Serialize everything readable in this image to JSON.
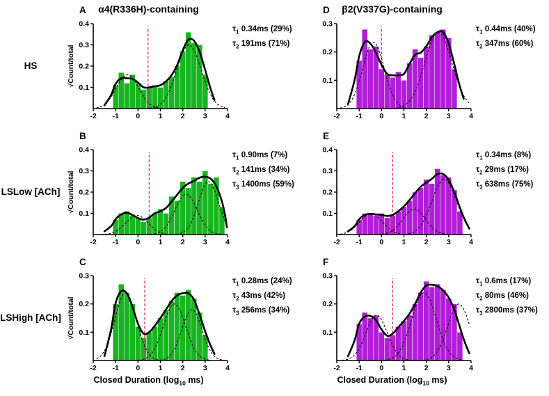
{
  "columns": [
    {
      "title": "α4(R336H)-containing"
    },
    {
      "title": "β2(V337G)-containing"
    }
  ],
  "row_labels": [
    {
      "lines": [
        "HS"
      ]
    },
    {
      "lines": [
        "LS",
        "Low [ACh]"
      ]
    },
    {
      "lines": [
        "LS",
        "High [ACh]"
      ]
    }
  ],
  "x_axis_label": {
    "pre": "Closed Duration (log",
    "sub": "10",
    "post": " ms)"
  },
  "y_axis_label": "√Count/total",
  "colors": {
    "green": "#18b520",
    "purple": "#b01ed8",
    "marker_line": "#e6246d",
    "fit_curve": "#000000"
  },
  "chart_data": {
    "type": "bar",
    "subtype": "closed-duration dwell-time histograms (sqrt counts) with multi-exponential fit curves",
    "x_axis": {
      "range": [
        -2,
        4
      ],
      "ticks": [
        -2,
        -1,
        0,
        1,
        2,
        3,
        4
      ]
    },
    "panels": [
      {
        "letter": "A",
        "row": "HS",
        "column": "α4(R336H)-containing",
        "color": "green",
        "ylabel": "√Count/total",
        "ylim": [
          0,
          0.4
        ],
        "yticks": [
          0.1,
          0.2,
          0.3,
          0.4
        ],
        "xlim": [
          -2,
          4
        ],
        "xticks": [
          -2,
          -1,
          0,
          1,
          2,
          3,
          4
        ],
        "marker_x": 0.45,
        "bins": {
          "start": -1.0,
          "width": 0.25,
          "values": [
            0.11,
            0.17,
            0.12,
            0.16,
            0.12,
            0.09,
            0.1,
            0.11,
            0.1,
            0.13,
            0.15,
            0.2,
            0.27,
            0.36,
            0.31,
            0.3,
            0.16
          ]
        },
        "components": [
          {
            "tau_label": "1",
            "tau_ms": 0.34,
            "percent": 29,
            "text": "0.34ms (29%)",
            "center": -0.47,
            "amp": 0.16,
            "sigma": 0.5
          },
          {
            "tau_label": "2",
            "tau_ms": 191,
            "percent": 71,
            "text": "191ms (71%)",
            "center": 2.28,
            "amp": 0.3,
            "sigma": 0.55
          }
        ]
      },
      {
        "letter": "B",
        "row": "LS Low [ACh]",
        "column": "α4(R336H)-containing",
        "color": "green",
        "ylabel": "√Count/total",
        "ylim": [
          0,
          0.4
        ],
        "yticks": [
          0.1,
          0.2,
          0.3,
          0.4
        ],
        "xlim": [
          -2,
          4
        ],
        "xticks": [
          -2,
          -1,
          0,
          1,
          2,
          3,
          4
        ],
        "marker_x": 0.5,
        "bins": {
          "start": -1.0,
          "width": 0.25,
          "values": [
            0.07,
            0.1,
            0.11,
            0.09,
            0.08,
            0.06,
            0.08,
            0.1,
            0.12,
            0.1,
            0.18,
            0.16,
            0.25,
            0.22,
            0.27,
            0.25,
            0.3,
            0.24,
            0.27,
            0.13
          ]
        },
        "components": [
          {
            "tau_label": "1",
            "tau_ms": 0.9,
            "percent": 7,
            "text": "0.90ms (7%)",
            "center": -0.05,
            "amp": 0.09,
            "sigma": 0.5
          },
          {
            "tau_label": "2",
            "tau_ms": 141,
            "percent": 34,
            "text": "141ms (34%)",
            "center": 2.15,
            "amp": 0.19,
            "sigma": 0.5
          },
          {
            "tau_label": "3",
            "tau_ms": 1400,
            "percent": 59,
            "text": "1400ms (59%)",
            "center": 3.15,
            "amp": 0.25,
            "sigma": 0.45
          }
        ]
      },
      {
        "letter": "C",
        "row": "LS High [ACh]",
        "column": "α4(R336H)-containing",
        "color": "green",
        "ylabel": "√Count/total",
        "ylim": [
          0,
          0.3
        ],
        "yticks": [
          0.1,
          0.2,
          0.3
        ],
        "xlim": [
          -2,
          4
        ],
        "xticks": [
          -2,
          -1,
          0,
          1,
          2,
          3,
          4
        ],
        "marker_x": 0.3,
        "bins": {
          "start": -1.0,
          "width": 0.25,
          "values": [
            0.2,
            0.27,
            0.24,
            0.2,
            0.12,
            0.08,
            0.1,
            0.12,
            0.15,
            0.18,
            0.21,
            0.24,
            0.23,
            0.25,
            0.22,
            0.17,
            0.09
          ]
        },
        "components": [
          {
            "tau_label": "1",
            "tau_ms": 0.28,
            "percent": 24,
            "text": "0.28ms (24%)",
            "center": -0.55,
            "amp": 0.24,
            "sigma": 0.48
          },
          {
            "tau_label": "2",
            "tau_ms": 43,
            "percent": 42,
            "text": "43ms (42%)",
            "center": 1.63,
            "amp": 0.2,
            "sigma": 0.5
          },
          {
            "tau_label": "3",
            "tau_ms": 256,
            "percent": 34,
            "text": "256ms (34%)",
            "center": 2.41,
            "amp": 0.18,
            "sigma": 0.45
          }
        ]
      },
      {
        "letter": "D",
        "row": "HS",
        "column": "β2(V337G)-containing",
        "color": "purple",
        "ylabel": "",
        "ylim": [
          0,
          0.3
        ],
        "yticks": [
          0.1,
          0.2,
          0.3
        ],
        "xlim": [
          -2,
          4
        ],
        "xticks": [
          -2,
          -1,
          0,
          1,
          2,
          3,
          4
        ],
        "marker_x": 0.0,
        "bins": {
          "start": -1.0,
          "width": 0.25,
          "values": [
            0.17,
            0.28,
            0.21,
            0.22,
            0.14,
            0.12,
            0.11,
            0.13,
            0.1,
            0.16,
            0.21,
            0.18,
            0.22,
            0.26,
            0.27,
            0.28,
            0.25,
            0.14
          ]
        },
        "components": [
          {
            "tau_label": "1",
            "tau_ms": 0.44,
            "percent": 40,
            "text": "0.44ms (40%)",
            "center": -0.36,
            "amp": 0.235,
            "sigma": 0.48
          },
          {
            "tau_label": "2",
            "tau_ms": 347,
            "percent": 60,
            "text": "347ms (60%)",
            "center": 2.54,
            "amp": 0.27,
            "sigma": 0.6
          }
        ]
      },
      {
        "letter": "E",
        "row": "LS Low [ACh]",
        "column": "β2(V337G)-containing",
        "color": "purple",
        "ylabel": "",
        "ylim": [
          0,
          0.4
        ],
        "yticks": [
          0.1,
          0.2,
          0.3,
          0.4
        ],
        "xlim": [
          -2,
          4
        ],
        "xticks": [
          -2,
          -1,
          0,
          1,
          2,
          3,
          4
        ],
        "marker_x": 0.5,
        "bins": {
          "start": -1.0,
          "width": 0.25,
          "values": [
            0.07,
            0.1,
            0.1,
            0.09,
            0.1,
            0.08,
            0.09,
            0.11,
            0.13,
            0.16,
            0.2,
            0.22,
            0.26,
            0.24,
            0.31,
            0.28,
            0.27,
            0.21,
            0.11
          ]
        },
        "components": [
          {
            "tau_label": "1",
            "tau_ms": 0.34,
            "percent": 8,
            "text": "0.34ms (8%)",
            "center": -0.47,
            "amp": 0.1,
            "sigma": 0.5
          },
          {
            "tau_label": "2",
            "tau_ms": 29,
            "percent": 17,
            "text": "29ms (17%)",
            "center": 1.46,
            "amp": 0.12,
            "sigma": 0.5
          },
          {
            "tau_label": "3",
            "tau_ms": 638,
            "percent": 75,
            "text": "638ms (75%)",
            "center": 2.8,
            "amp": 0.26,
            "sigma": 0.55
          }
        ]
      },
      {
        "letter": "F",
        "row": "LS High [ACh]",
        "column": "β2(V337G)-containing",
        "color": "purple",
        "ylabel": "",
        "ylim": [
          0,
          0.3
        ],
        "yticks": [
          0.1,
          0.2,
          0.3
        ],
        "xlim": [
          -2,
          4
        ],
        "xticks": [
          -2,
          -1,
          0,
          1,
          2,
          3,
          4
        ],
        "marker_x": 0.5,
        "bins": {
          "start": -1.0,
          "width": 0.25,
          "values": [
            0.13,
            0.17,
            0.15,
            0.16,
            0.1,
            0.08,
            0.09,
            0.12,
            0.14,
            0.16,
            0.2,
            0.24,
            0.28,
            0.26,
            0.27,
            0.25,
            0.22,
            0.2,
            0.1
          ]
        },
        "components": [
          {
            "tau_label": "1",
            "tau_ms": 0.6,
            "percent": 17,
            "text": "0.6ms (17%)",
            "center": -0.22,
            "amp": 0.16,
            "sigma": 0.48
          },
          {
            "tau_label": "2",
            "tau_ms": 80,
            "percent": 46,
            "text": "80ms (46%)",
            "center": 1.9,
            "amp": 0.24,
            "sigma": 0.55
          },
          {
            "tau_label": "3",
            "tau_ms": 2800,
            "percent": 37,
            "text": "2800ms (37%)",
            "center": 3.45,
            "amp": 0.2,
            "sigma": 0.5
          }
        ]
      }
    ]
  }
}
